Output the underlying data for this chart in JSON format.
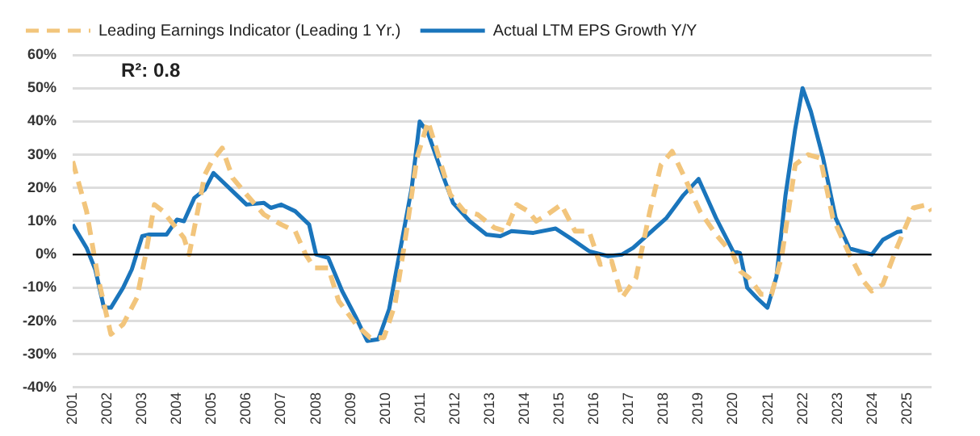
{
  "chart_data": {
    "type": "line",
    "legend": "top",
    "grid": "y",
    "marker": "none",
    "annotations": [
      "R²: 0.8"
    ],
    "xlim": [
      2001,
      2025.7
    ],
    "xticks": [
      2001,
      2002,
      2003,
      2004,
      2005,
      2006,
      2007,
      2008,
      2009,
      2010,
      2011,
      2012,
      2013,
      2014,
      2015,
      2016,
      2017,
      2018,
      2019,
      2020,
      2021,
      2022,
      2023,
      2024,
      2025
    ],
    "ylim": [
      -40,
      60
    ],
    "yticks": [
      {
        "value": -40,
        "label": "-40%"
      },
      {
        "value": -30,
        "label": "-30%"
      },
      {
        "value": -20,
        "label": "-20%"
      },
      {
        "value": -10,
        "label": "-10%"
      },
      {
        "value": 0,
        "label": "0%"
      },
      {
        "value": 10,
        "label": "10%"
      },
      {
        "value": 20,
        "label": "20%"
      },
      {
        "value": 30,
        "label": "30%"
      },
      {
        "value": 40,
        "label": "40%"
      },
      {
        "value": 50,
        "label": "50%"
      },
      {
        "value": 60,
        "label": "60%"
      }
    ],
    "ref_lines": [
      {
        "axis": "y",
        "value": 0,
        "color": "#000000"
      }
    ],
    "series": [
      {
        "name": "Leading Earnings Indicator (Leading 1 Yr.)",
        "color": "#f2c57c",
        "line_style": "dashed",
        "x": [
          2001,
          2001.4,
          2001.73,
          2002.1,
          2002.45,
          2002.85,
          2003.1,
          2003.35,
          2003.6,
          2003.9,
          2004.2,
          2004.35,
          2004.5,
          2004.8,
          2005,
          2005.3,
          2005.6,
          2006,
          2006.5,
          2007,
          2007.4,
          2007.7,
          2007.95,
          2008.35,
          2008.65,
          2009.15,
          2009.55,
          2009.95,
          2010.27,
          2010.6,
          2010.9,
          2011.22,
          2011.54,
          2011.86,
          2012.26,
          2012.65,
          2013.13,
          2013.45,
          2013.77,
          2014.1,
          2014.33,
          2014.65,
          2015.05,
          2015.45,
          2015.85,
          2016.17,
          2016.5,
          2016.8,
          2017.2,
          2017.6,
          2017.92,
          2018.24,
          2018.56,
          2019.04,
          2019.5,
          2019.99,
          2020.2,
          2020.45,
          2020.8,
          2021.1,
          2021.4,
          2021.78,
          2022.15,
          2022.5,
          2022.86,
          2023.34,
          2023.74,
          2023.98,
          2024.3,
          2024.7,
          2025.18,
          2025.58,
          2025.7
        ],
        "values": [
          28,
          13,
          -7,
          -24,
          -21,
          -13,
          0,
          15,
          13,
          9,
          5,
          0,
          8,
          24,
          28,
          32,
          23,
          18,
          12,
          9,
          7,
          0,
          -4,
          -4,
          -14,
          -21,
          -25,
          -25,
          -15,
          7,
          29,
          40,
          29,
          18,
          13,
          12,
          8,
          7,
          15,
          13,
          10,
          12,
          15,
          7,
          7,
          -3,
          -2,
          -13,
          -7,
          13,
          27,
          31,
          24,
          13,
          6,
          0,
          -5,
          -7,
          -12,
          -12,
          0,
          27,
          30,
          29,
          11,
          0,
          -8,
          -11,
          -9,
          2,
          14,
          15,
          13
        ]
      },
      {
        "name": "Actual LTM EPS Growth Y/Y",
        "color": "#1a75bc",
        "line_style": "solid",
        "x": [
          2001,
          2001.4,
          2001.65,
          2001.9,
          2002.1,
          2002.45,
          2002.7,
          2003,
          2003.2,
          2003.7,
          2004,
          2004.2,
          2004.5,
          2004.8,
          2005.05,
          2005.3,
          2005.6,
          2006,
          2006.5,
          2006.7,
          2007,
          2007.4,
          2007.8,
          2008,
          2008.35,
          2008.75,
          2009.15,
          2009.47,
          2009.79,
          2010.1,
          2010.43,
          2010.75,
          2010.98,
          2011.22,
          2011.62,
          2011.94,
          2012.42,
          2012.9,
          2013.3,
          2013.62,
          2014.25,
          2014.89,
          2015.37,
          2015.85,
          2016.4,
          2016.8,
          2017.12,
          2017.6,
          2018.08,
          2018.56,
          2019,
          2019.5,
          2019.99,
          2020.19,
          2020.4,
          2020.7,
          2020.98,
          2021.24,
          2021.5,
          2021.78,
          2021.99,
          2022.23,
          2022.58,
          2022.94,
          2023.34,
          2023.66,
          2023.98,
          2024.3,
          2024.7,
          2024.86
        ],
        "values": [
          9,
          2,
          -4.5,
          -16,
          -16,
          -10,
          -4.5,
          5.5,
          6,
          6,
          10.5,
          10,
          17,
          19.5,
          24.5,
          22,
          19,
          15,
          15.5,
          14,
          15,
          13,
          9,
          0,
          -1,
          -11,
          -19,
          -26,
          -25.5,
          -16.5,
          2,
          20,
          40,
          36.5,
          24.5,
          15.5,
          10,
          6,
          5.5,
          7,
          6.5,
          7.8,
          4.5,
          1,
          -0.5,
          0,
          2,
          6.5,
          11,
          17.8,
          22.7,
          11,
          1,
          0.4,
          -10,
          -13.3,
          -16,
          -6.7,
          17.8,
          37.8,
          50,
          43,
          29,
          11,
          1.8,
          0.9,
          0,
          4.4,
          6.7,
          7
        ]
      }
    ]
  }
}
